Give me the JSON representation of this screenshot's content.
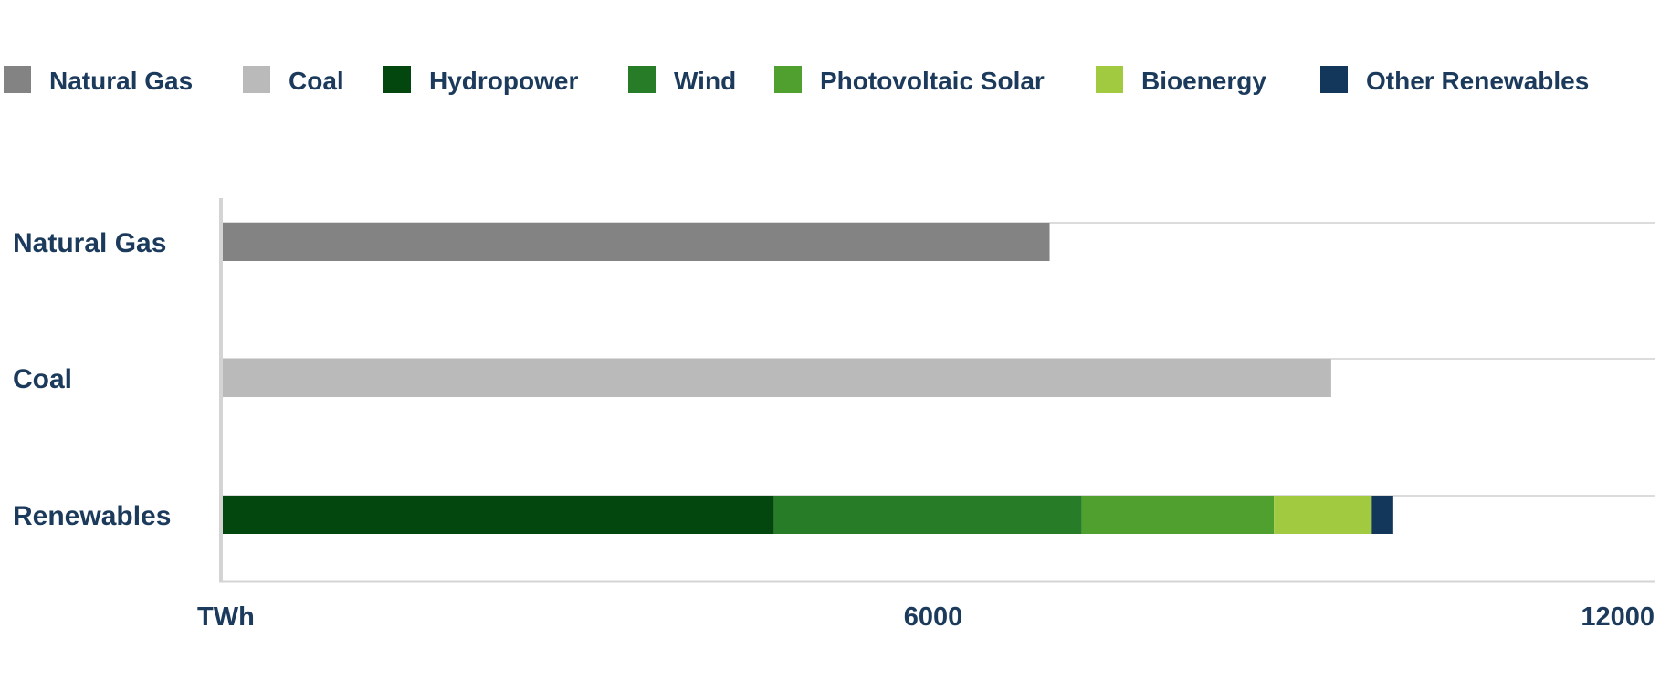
{
  "chart_data": {
    "type": "bar",
    "orientation": "horizontal",
    "stacked": true,
    "categories": [
      "Natural Gas",
      "Coal",
      "Renewables"
    ],
    "legend": [
      {
        "name": "Natural Gas",
        "color": "#838383"
      },
      {
        "name": "Coal",
        "color": "#bababa"
      },
      {
        "name": "Hydropower",
        "color": "#03470e"
      },
      {
        "name": "Wind",
        "color": "#267c27"
      },
      {
        "name": "Photovoltaic Solar",
        "color": "#50a030"
      },
      {
        "name": "Bioenergy",
        "color": "#a2ca40"
      },
      {
        "name": "Other Renewables",
        "color": "#12375a"
      }
    ],
    "series": [
      {
        "name": "Natural Gas",
        "color": "#838383",
        "values": [
          6930,
          0,
          0
        ]
      },
      {
        "name": "Coal",
        "color": "#bababa",
        "values": [
          0,
          9290,
          0
        ]
      },
      {
        "name": "Hydropower",
        "color": "#03470e",
        "values": [
          0,
          0,
          4620
        ]
      },
      {
        "name": "Wind",
        "color": "#267c27",
        "values": [
          0,
          0,
          2580
        ]
      },
      {
        "name": "Photovoltaic Solar",
        "color": "#50a030",
        "values": [
          0,
          0,
          1610
        ]
      },
      {
        "name": "Bioenergy",
        "color": "#a2ca40",
        "values": [
          0,
          0,
          820
        ]
      },
      {
        "name": "Other Renewables",
        "color": "#12375a",
        "values": [
          0,
          0,
          180
        ]
      }
    ],
    "xlim": [
      0,
      12000
    ],
    "xticks": [
      {
        "value": 0,
        "label": "TWh"
      },
      {
        "value": 6000,
        "label": "6000"
      },
      {
        "value": 12000,
        "label": "12000"
      }
    ],
    "grid": true,
    "legend_placement": "top"
  }
}
